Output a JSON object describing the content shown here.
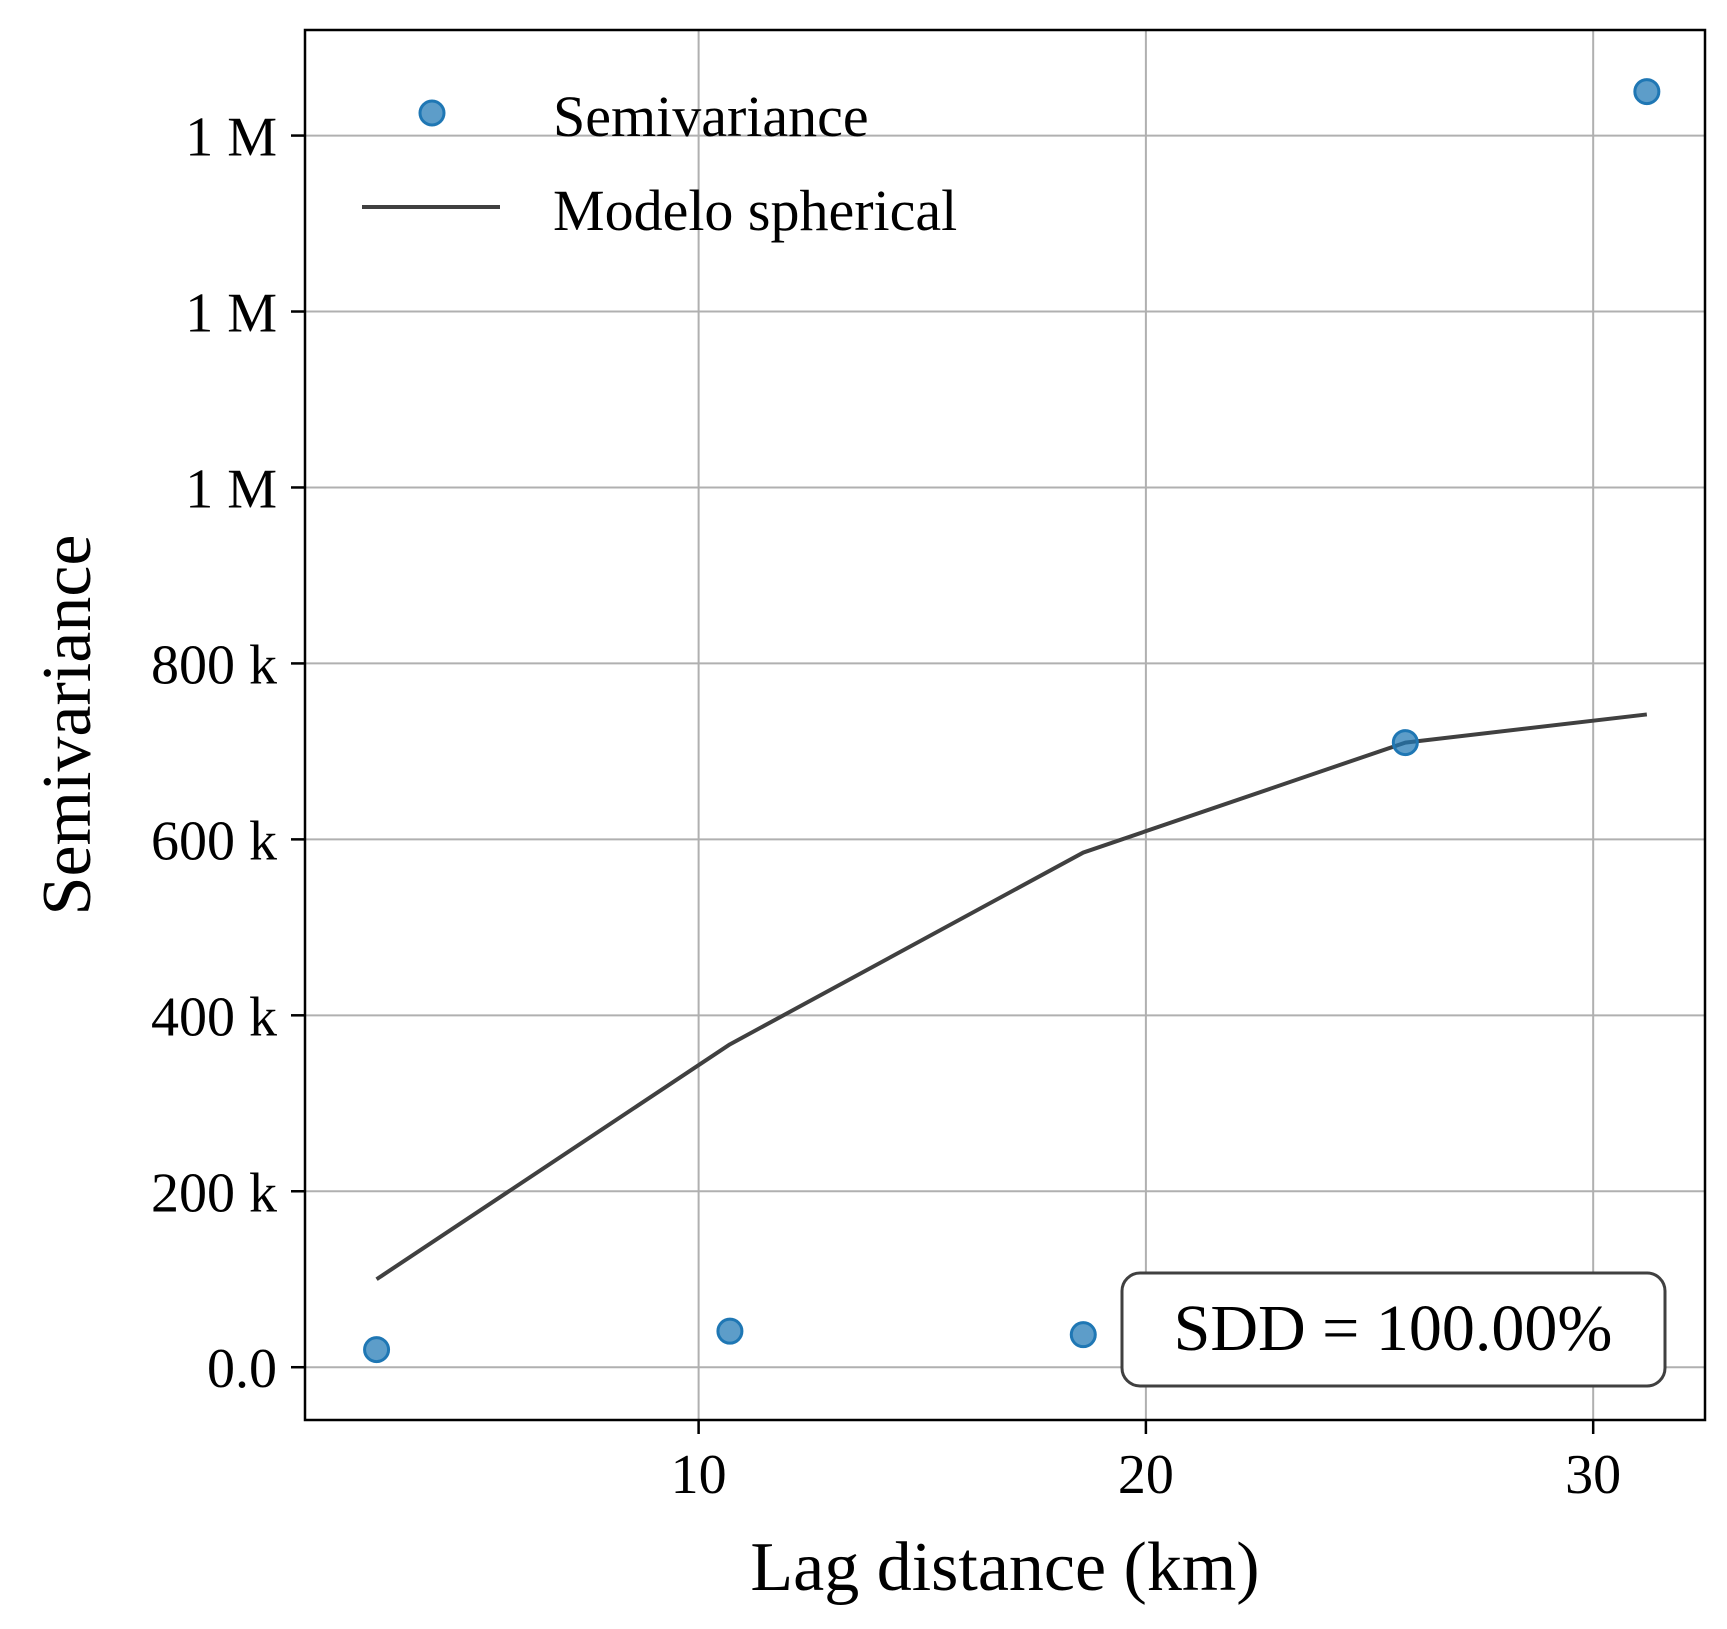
{
  "chart_data": {
    "type": "scatter",
    "xlabel": "Lag distance (km)",
    "ylabel": "Semivariance",
    "xlim": [
      1.2,
      32.5
    ],
    "ylim": [
      -60000,
      1520000
    ],
    "x_ticks": [
      {
        "value": 10,
        "label": "10"
      },
      {
        "value": 20,
        "label": "20"
      },
      {
        "value": 30,
        "label": "30"
      }
    ],
    "y_ticks": [
      {
        "value": 0,
        "label": "0.0"
      },
      {
        "value": 200000,
        "label": "200 k"
      },
      {
        "value": 400000,
        "label": "400 k"
      },
      {
        "value": 600000,
        "label": "600 k"
      },
      {
        "value": 800000,
        "label": "800 k"
      },
      {
        "value": 1000000,
        "label": "1 M"
      },
      {
        "value": 1200000,
        "label": "1 M"
      },
      {
        "value": 1400000,
        "label": "1 M"
      }
    ],
    "grid": true,
    "legend_position": "top-left",
    "series": [
      {
        "name": "Semivariance",
        "kind": "scatter",
        "color": "#1f77b4",
        "x": [
          2.8,
          10.7,
          18.6,
          25.8,
          31.2
        ],
        "y": [
          20000,
          41000,
          37000,
          710000,
          1450000
        ]
      },
      {
        "name": "Modelo spherical",
        "kind": "line",
        "color": "#404040",
        "x": [
          2.8,
          10.7,
          18.6,
          25.8,
          31.2
        ],
        "y": [
          100000,
          367000,
          585000,
          710000,
          742000
        ]
      }
    ],
    "annotation": "SDD = 100.00%"
  }
}
